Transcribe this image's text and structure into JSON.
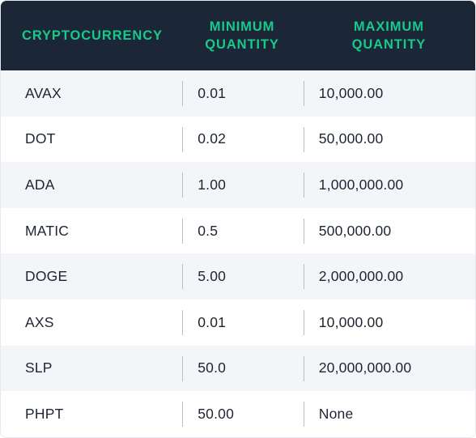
{
  "table": {
    "headers": {
      "col1": "CRYPTOCURRENCY",
      "col2_line1": "MINIMUM",
      "col2_line2": "QUANTITY",
      "col3_line1": "MAXIMUM",
      "col3_line2": "QUANTITY"
    },
    "rows": [
      {
        "crypto": "AVAX",
        "min": "0.01",
        "max": "10,000.00"
      },
      {
        "crypto": "DOT",
        "min": "0.02",
        "max": "50,000.00"
      },
      {
        "crypto": "ADA",
        "min": "1.00",
        "max": "1,000,000.00"
      },
      {
        "crypto": "MATIC",
        "min": "0.5",
        "max": "500,000.00"
      },
      {
        "crypto": "DOGE",
        "min": "5.00",
        "max": "2,000,000.00"
      },
      {
        "crypto": "AXS",
        "min": "0.01",
        "max": "10,000.00"
      },
      {
        "crypto": "SLP",
        "min": "50.0",
        "max": "20,000,000.00"
      },
      {
        "crypto": "PHPT",
        "min": "50.00",
        "max": "None"
      }
    ]
  },
  "colors": {
    "header_bg": "#1b2637",
    "header_text": "#18c98a",
    "row_alt_bg": "#f3f5f8",
    "body_text": "#1d2532"
  }
}
